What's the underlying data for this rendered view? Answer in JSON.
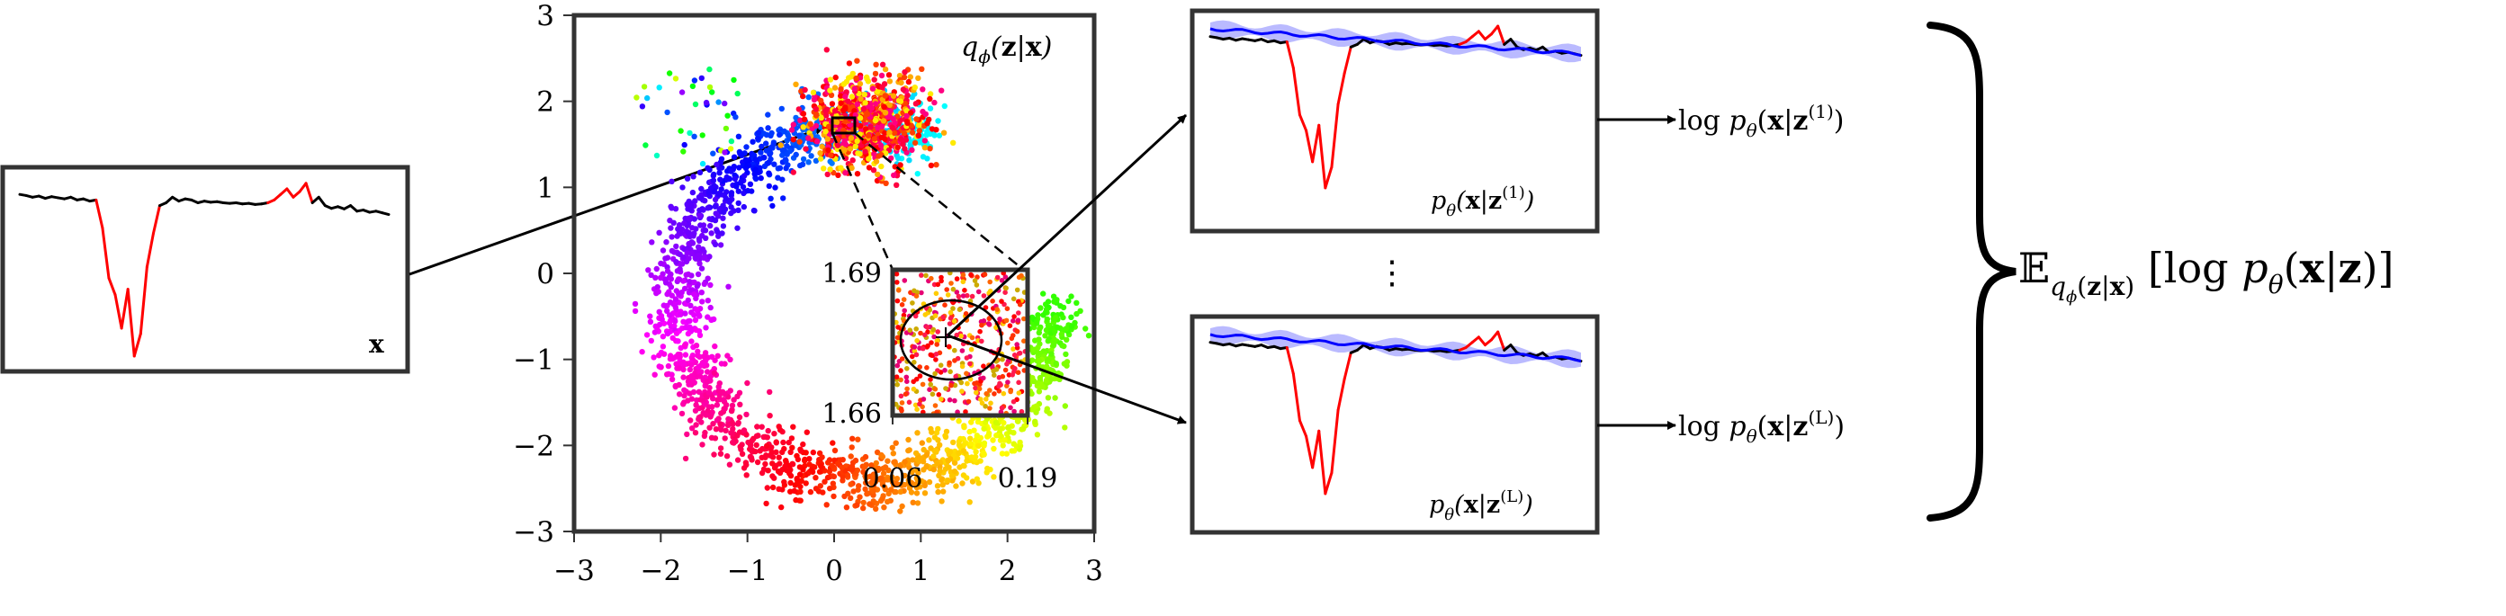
{
  "colors": {
    "normal": "#000000",
    "anomaly": "#ff0000",
    "recon_mean": "#0000ff",
    "recon_band": "#a9a9ff",
    "frame": "#333333"
  },
  "input_panel": {
    "label": "x",
    "series": [
      0.1,
      0.12,
      0.15,
      0.13,
      0.17,
      0.14,
      0.16,
      0.18,
      0.15,
      0.2,
      0.18,
      0.22,
      0.2,
      0.7,
      1.6,
      1.9,
      2.5,
      1.8,
      3.0,
      2.6,
      1.4,
      0.8,
      0.3,
      0.25,
      0.15,
      0.22,
      0.18,
      0.2,
      0.25,
      0.22,
      0.24,
      0.23,
      0.25,
      0.26,
      0.25,
      0.27,
      0.26,
      0.28,
      0.27,
      0.25,
      0.2,
      0.1,
      0.0,
      0.15,
      0.05,
      -0.1,
      0.25,
      0.15,
      0.3,
      0.35,
      0.32,
      0.36,
      0.3,
      0.4,
      0.38,
      0.42,
      0.4,
      0.43,
      0.46
    ],
    "anomaly_ranges": [
      [
        12,
        22
      ],
      [
        39,
        46
      ]
    ]
  },
  "scatter": {
    "title": "q_φ(z|x)",
    "xlim": [
      -3,
      3
    ],
    "ylim": [
      -3,
      3
    ],
    "xticks": [
      "−3",
      "−2",
      "−1",
      "0",
      "1",
      "2",
      "3"
    ],
    "yticks": [
      "−3",
      "−2",
      "−1",
      "0",
      "1",
      "2",
      "3"
    ],
    "inset": {
      "x_labels": [
        "0.06",
        "0.19"
      ],
      "y_labels": [
        "1.69",
        "1.66"
      ]
    }
  },
  "recon_top": {
    "label": "p_θ(x|z^(1))",
    "output": "log p_θ(x|z^(1))"
  },
  "recon_bottom": {
    "label": "p_θ(x|z^(L))",
    "output": "log p_θ(x|z^(L))"
  },
  "ellipsis": "⋮",
  "expectation": "𝔼_{q_φ(z|x)} [log p_θ(x|z)]"
}
